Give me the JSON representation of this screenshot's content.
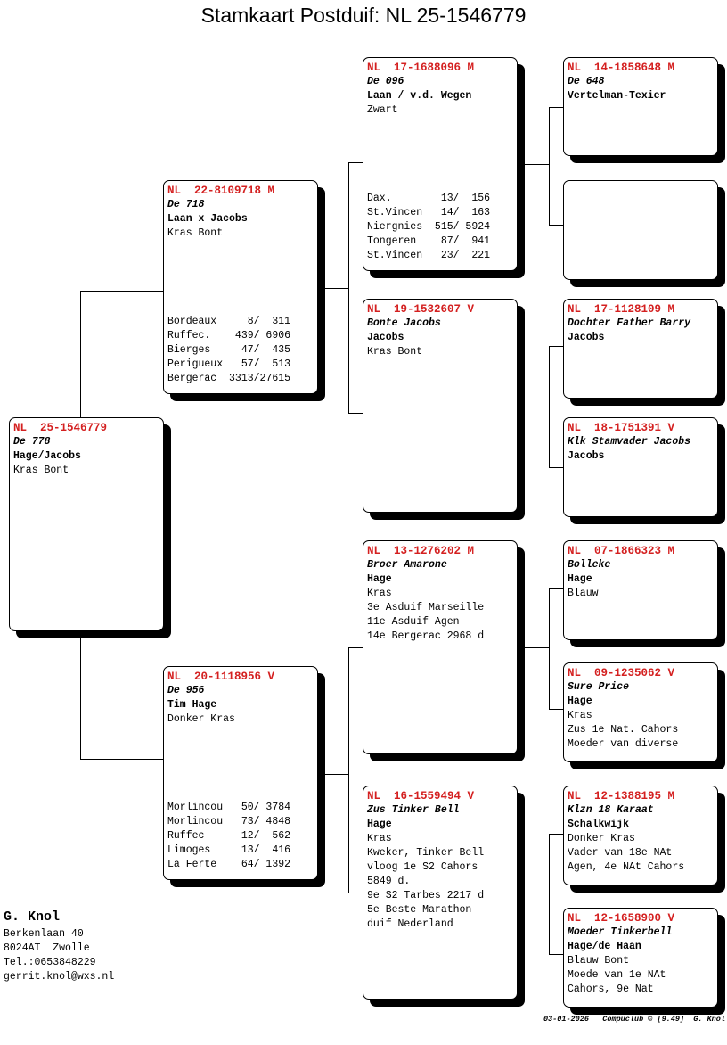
{
  "title": "Stamkaart Postduif: NL  25-1546779",
  "cards": [
    {
      "id": "subject",
      "ring": "NL  25-1546779",
      "name": "De 778",
      "breeder": "Hage/Jacobs",
      "lines": [
        "Kras Bont"
      ],
      "results": []
    },
    {
      "id": "sire",
      "ring": "NL  22-8109718 M",
      "name": "De 718",
      "breeder": "Laan x Jacobs",
      "lines": [
        "Kras Bont"
      ],
      "results": [
        "Bordeaux     8/  311",
        "Ruffec.    439/ 6906",
        "Bierges     47/  435",
        "Perigueux   57/  513",
        "Bergerac  3313/27615"
      ]
    },
    {
      "id": "dam",
      "ring": "NL  20-1118956 V",
      "name": "De 956",
      "breeder": "Tim Hage",
      "lines": [
        "Donker Kras"
      ],
      "results": [
        "Morlincou   50/ 3784",
        "Morlincou   73/ 4848",
        "Ruffec      12/  562",
        "Limoges     13/  416",
        "La Ferte    64/ 1392"
      ]
    },
    {
      "id": "sire-sire",
      "ring": "NL  17-1688096 M",
      "name": "De 096",
      "breeder": "Laan / v.d. Wegen",
      "lines": [
        "Zwart"
      ],
      "results": [
        "Dax.        13/  156",
        "St.Vincen   14/  163",
        "Niergnies  515/ 5924",
        "Tongeren    87/  941",
        "St.Vincen   23/  221"
      ]
    },
    {
      "id": "sire-dam",
      "ring": "NL  19-1532607 V",
      "name": "Bonte Jacobs",
      "breeder": "Jacobs",
      "lines": [
        "Kras Bont"
      ],
      "results": []
    },
    {
      "id": "dam-sire",
      "ring": "NL  13-1276202 M",
      "name": "Broer Amarone",
      "breeder": "Hage",
      "lines": [
        "Kras",
        "3e Asduif Marseille",
        "11e Asduif Agen",
        "14e Bergerac 2968 d"
      ],
      "results": []
    },
    {
      "id": "dam-dam",
      "ring": "NL  16-1559494 V",
      "name": "Zus Tinker Bell",
      "breeder": "Hage",
      "lines": [
        "Kras",
        "Kweker, Tinker Bell",
        "vloog 1e S2 Cahors",
        "5849 d.",
        "9e S2 Tarbes 2217 d",
        "5e Beste Marathon",
        "duif Nederland"
      ],
      "results": []
    },
    {
      "id": "ss-sire",
      "ring": "NL  14-1858648 M",
      "name": "De 648",
      "breeder": "Vertelman-Texier",
      "lines": [],
      "results": []
    },
    {
      "id": "ss-dam",
      "ring": "",
      "name": "",
      "breeder": "",
      "lines": [],
      "results": []
    },
    {
      "id": "sd-sire",
      "ring": "NL  17-1128109 M",
      "name": "Dochter Father Barry",
      "breeder": "Jacobs",
      "lines": [],
      "results": []
    },
    {
      "id": "sd-dam",
      "ring": "NL  18-1751391 V",
      "name": "Klk Stamvader Jacobs",
      "breeder": "Jacobs",
      "lines": [],
      "results": []
    },
    {
      "id": "ds-sire",
      "ring": "NL  07-1866323 M",
      "name": "Bolleke",
      "breeder": "Hage",
      "lines": [
        "Blauw"
      ],
      "results": []
    },
    {
      "id": "ds-dam",
      "ring": "NL  09-1235062 V",
      "name": "Sure Price",
      "breeder": "Hage",
      "lines": [
        "Kras",
        "Zus 1e Nat. Cahors",
        "Moeder van diverse"
      ],
      "results": []
    },
    {
      "id": "dd-sire",
      "ring": "NL  12-1388195 M",
      "name": "Klzn 18 Karaat",
      "breeder": "Schalkwijk",
      "lines": [
        "Donker Kras",
        "Vader van 18e NAt",
        "Agen, 4e NAt Cahors"
      ],
      "results": []
    },
    {
      "id": "dd-dam",
      "ring": "NL  12-1658900 V",
      "name": "Moeder Tinkerbell",
      "breeder": "Hage/de Haan",
      "lines": [
        "Blauw Bont",
        "Moede van 1e NAt",
        "Cahors, 9e Nat"
      ],
      "results": []
    }
  ],
  "owner": {
    "name": "G. Knol",
    "address": "Berkenlaan 40",
    "city": "8024AT  Zwolle",
    "phone": "Tel.:0653848229",
    "email": "gerrit.knol@wxs.nl"
  },
  "footer": "03-01-2026   Compuclub © [9.49]  G. Knol",
  "colors": {
    "ring": "#d42020",
    "shadow": "#000000"
  }
}
